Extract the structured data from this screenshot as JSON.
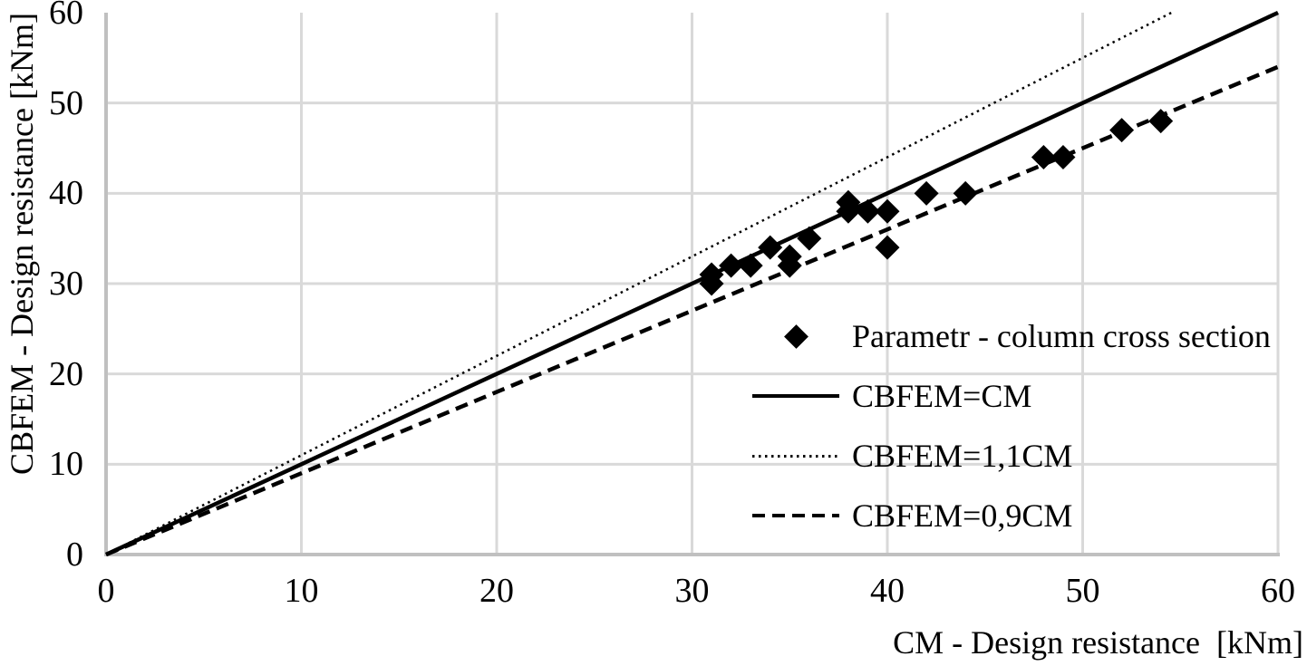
{
  "chart_data": {
    "type": "scatter",
    "title": "",
    "xlabel": "CM - Design resistance  [kNm]",
    "ylabel": "CBFEM - Design resistance [kNm]",
    "xlim": [
      0,
      60
    ],
    "ylim": [
      0,
      60
    ],
    "xticks": [
      0,
      10,
      20,
      30,
      40,
      50,
      60
    ],
    "yticks": [
      0,
      10,
      20,
      30,
      40,
      50,
      60
    ],
    "grid": true,
    "legend_position": "inside-lower-right",
    "series": [
      {
        "name": "Parametr - column cross section",
        "type": "scatter",
        "marker": "diamond",
        "color": "#000000",
        "points": [
          [
            31,
            30
          ],
          [
            31,
            31
          ],
          [
            32,
            32
          ],
          [
            33,
            32
          ],
          [
            34,
            34
          ],
          [
            35,
            32
          ],
          [
            35,
            33
          ],
          [
            36,
            35
          ],
          [
            38,
            38
          ],
          [
            38,
            39
          ],
          [
            39,
            38
          ],
          [
            40,
            34
          ],
          [
            40,
            38
          ],
          [
            42,
            40
          ],
          [
            44,
            40
          ],
          [
            48,
            44
          ],
          [
            49,
            44
          ],
          [
            52,
            47
          ],
          [
            54,
            48
          ]
        ]
      },
      {
        "name": "CBFEM=CM",
        "type": "line",
        "style": "solid",
        "slope": 1.0,
        "color": "#000000"
      },
      {
        "name": "CBFEM=1,1CM",
        "type": "line",
        "style": "dotted",
        "slope": 1.1,
        "color": "#000000"
      },
      {
        "name": "CBFEM=0,9CM",
        "type": "line",
        "style": "dashed",
        "slope": 0.9,
        "color": "#000000"
      }
    ]
  },
  "colors": {
    "marker": "#000000",
    "line": "#000000",
    "gridline": "#d9d9d9",
    "axis": "#c0c0c0",
    "text": "#000000",
    "background": "#ffffff"
  }
}
